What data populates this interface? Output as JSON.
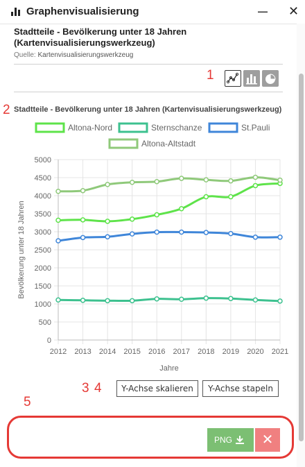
{
  "window": {
    "title": "Graphenvisualisierung",
    "minimize_icon": "minimize-icon",
    "minimize_symbol": "—",
    "close_symbol": "✕"
  },
  "layer": {
    "title": "Stadtteile - Bevölkerung unter 18 Jahren (Kartenvisualisierungswerkzeug)",
    "source_label": "Quelle:",
    "source_value": "Kartenvisualisierungswerkzeug"
  },
  "annotations": {
    "a1": "1",
    "a2": "2",
    "a3": "3",
    "a4": "4",
    "a5": "5"
  },
  "chart_types": [
    {
      "name": "line",
      "icon": "line-chart-icon",
      "active": true
    },
    {
      "name": "bar",
      "icon": "bar-chart-icon",
      "active": false
    },
    {
      "name": "pie",
      "icon": "pie-chart-icon",
      "active": false
    }
  ],
  "chart_data": {
    "type": "line",
    "title": "Stadtteile - Bevölkerung unter 18 Jahren (Kartenvisualisierungswerkzeug)",
    "xlabel": "Jahre",
    "ylabel": "Bevölkerung unter 18 Jahren",
    "x": [
      2012,
      2013,
      2014,
      2015,
      2016,
      2017,
      2018,
      2019,
      2020,
      2021
    ],
    "ylim": [
      0,
      5000
    ],
    "yticks": [
      0,
      500,
      1000,
      1500,
      2000,
      2500,
      3000,
      3500,
      4000,
      4500,
      5000
    ],
    "grid": true,
    "legend_position": "top",
    "series": [
      {
        "name": "Altona-Nord",
        "color": "#5ee34a",
        "values": [
          3320,
          3330,
          3290,
          3350,
          3470,
          3640,
          3970,
          3970,
          4280,
          4340
        ]
      },
      {
        "name": "Sternschanze",
        "color": "#3dc18f",
        "values": [
          1110,
          1100,
          1090,
          1090,
          1140,
          1130,
          1160,
          1150,
          1110,
          1080
        ]
      },
      {
        "name": "St.Pauli",
        "color": "#3f86d9",
        "values": [
          2750,
          2840,
          2860,
          2940,
          2990,
          2990,
          2980,
          2950,
          2850,
          2850
        ]
      },
      {
        "name": "Altona-Altstadt",
        "color": "#8fc97a",
        "values": [
          4120,
          4140,
          4310,
          4370,
          4390,
          4480,
          4440,
          4410,
          4510,
          4430
        ]
      }
    ]
  },
  "buttons": {
    "scale_y": "Y-Achse skalieren",
    "stack_y": "Y-Achse stapeln",
    "png": "PNG",
    "download_icon": "download-icon",
    "close": "✕"
  }
}
